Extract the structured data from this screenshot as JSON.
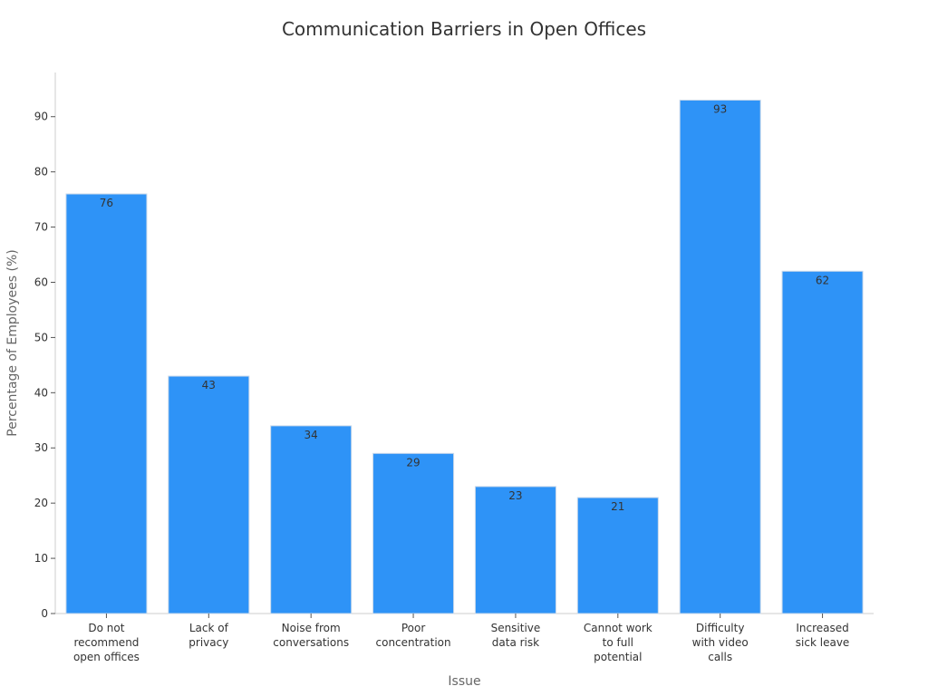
{
  "chart_data": {
    "type": "bar",
    "title": "Communication Barriers in Open Offices",
    "xlabel": "Issue",
    "ylabel": "Percentage of Employees (%)",
    "categories": [
      [
        "Do not",
        "recommend",
        "open offices"
      ],
      [
        "Lack of",
        "privacy"
      ],
      [
        "Noise from",
        "conversations"
      ],
      [
        "Poor",
        "concentration"
      ],
      [
        "Sensitive",
        "data risk"
      ],
      [
        "Cannot work",
        "to full",
        "potential"
      ],
      [
        "Difficulty",
        "with video",
        "calls"
      ],
      [
        "Increased",
        "sick leave"
      ]
    ],
    "values": [
      76,
      43,
      34,
      29,
      23,
      21,
      93,
      62
    ],
    "ylim": [
      0,
      98
    ],
    "yticks": [
      0,
      10,
      20,
      30,
      40,
      50,
      60,
      70,
      80,
      90
    ],
    "grid": false,
    "legend": "none",
    "colors": {
      "bar": "#2e93f7",
      "bar_edge": "#c8d8ea",
      "axis": "#cccccc",
      "text": "#333333",
      "label": "#666666"
    }
  }
}
